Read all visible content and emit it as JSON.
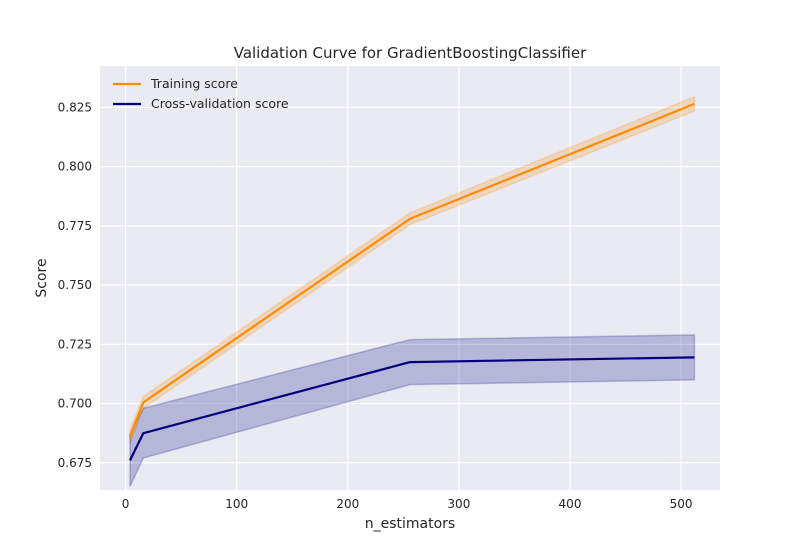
{
  "chart_data": {
    "type": "line",
    "title": "Validation Curve for GradientBoostingClassifier",
    "xlabel": "n_estimators",
    "ylabel": "Score",
    "xlim": [
      -23,
      535
    ],
    "ylim": [
      0.6635,
      0.8425
    ],
    "xticks": [
      0,
      100,
      200,
      300,
      400,
      500
    ],
    "yticks": [
      0.675,
      0.7,
      0.725,
      0.75,
      0.775,
      0.8,
      0.825
    ],
    "ytick_labels": [
      "0.675",
      "0.700",
      "0.725",
      "0.750",
      "0.775",
      "0.800",
      "0.825"
    ],
    "grid": true,
    "legend_position": "top-left",
    "x": [
      4,
      16,
      256,
      512
    ],
    "series": [
      {
        "name": "Training score",
        "color": "#ff8c00",
        "values": [
          0.686,
          0.7005,
          0.778,
          0.8265
        ],
        "band_lower": [
          0.683,
          0.698,
          0.7755,
          0.8235
        ],
        "band_upper": [
          0.689,
          0.703,
          0.7805,
          0.8295
        ]
      },
      {
        "name": "Cross-validation score",
        "color": "#000080",
        "values": [
          0.676,
          0.6875,
          0.7175,
          0.7195
        ],
        "band_lower": [
          0.665,
          0.677,
          0.708,
          0.71
        ],
        "band_upper": [
          0.687,
          0.698,
          0.727,
          0.729
        ]
      }
    ]
  },
  "colors": {
    "plot_background": "#eaeaf2",
    "grid": "#ffffff",
    "text": "#262626"
  }
}
